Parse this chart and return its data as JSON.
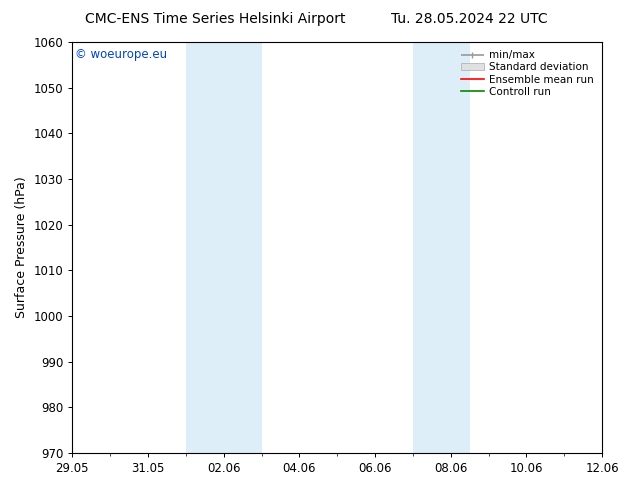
{
  "title_left": "CMC-ENS Time Series Helsinki Airport",
  "title_right": "Tu. 28.05.2024 22 UTC",
  "ylabel": "Surface Pressure (hPa)",
  "ylim": [
    970,
    1060
  ],
  "yticks": [
    970,
    980,
    990,
    1000,
    1010,
    1020,
    1030,
    1040,
    1050,
    1060
  ],
  "xtick_labels": [
    "29.05",
    "31.05",
    "02.06",
    "04.06",
    "06.06",
    "08.06",
    "10.06",
    "12.06"
  ],
  "xtick_positions": [
    0,
    2,
    4,
    6,
    8,
    10,
    12,
    14
  ],
  "xlim": [
    0,
    14
  ],
  "shaded_regions": [
    {
      "x_start": 3,
      "x_end": 5,
      "color": "#ddeef8"
    },
    {
      "x_start": 9,
      "x_end": 10.5,
      "color": "#ddeef8"
    }
  ],
  "legend_labels": [
    "min/max",
    "Standard deviation",
    "Ensemble mean run",
    "Controll run"
  ],
  "legend_colors": [
    "#999999",
    "#cccccc",
    "#ff0000",
    "#008800"
  ],
  "watermark": "© woeurope.eu",
  "watermark_color": "#0044cc",
  "background_color": "#ffffff",
  "plot_bg_color": "#ffffff",
  "title_fontsize": 10,
  "tick_fontsize": 8.5,
  "ylabel_fontsize": 9
}
